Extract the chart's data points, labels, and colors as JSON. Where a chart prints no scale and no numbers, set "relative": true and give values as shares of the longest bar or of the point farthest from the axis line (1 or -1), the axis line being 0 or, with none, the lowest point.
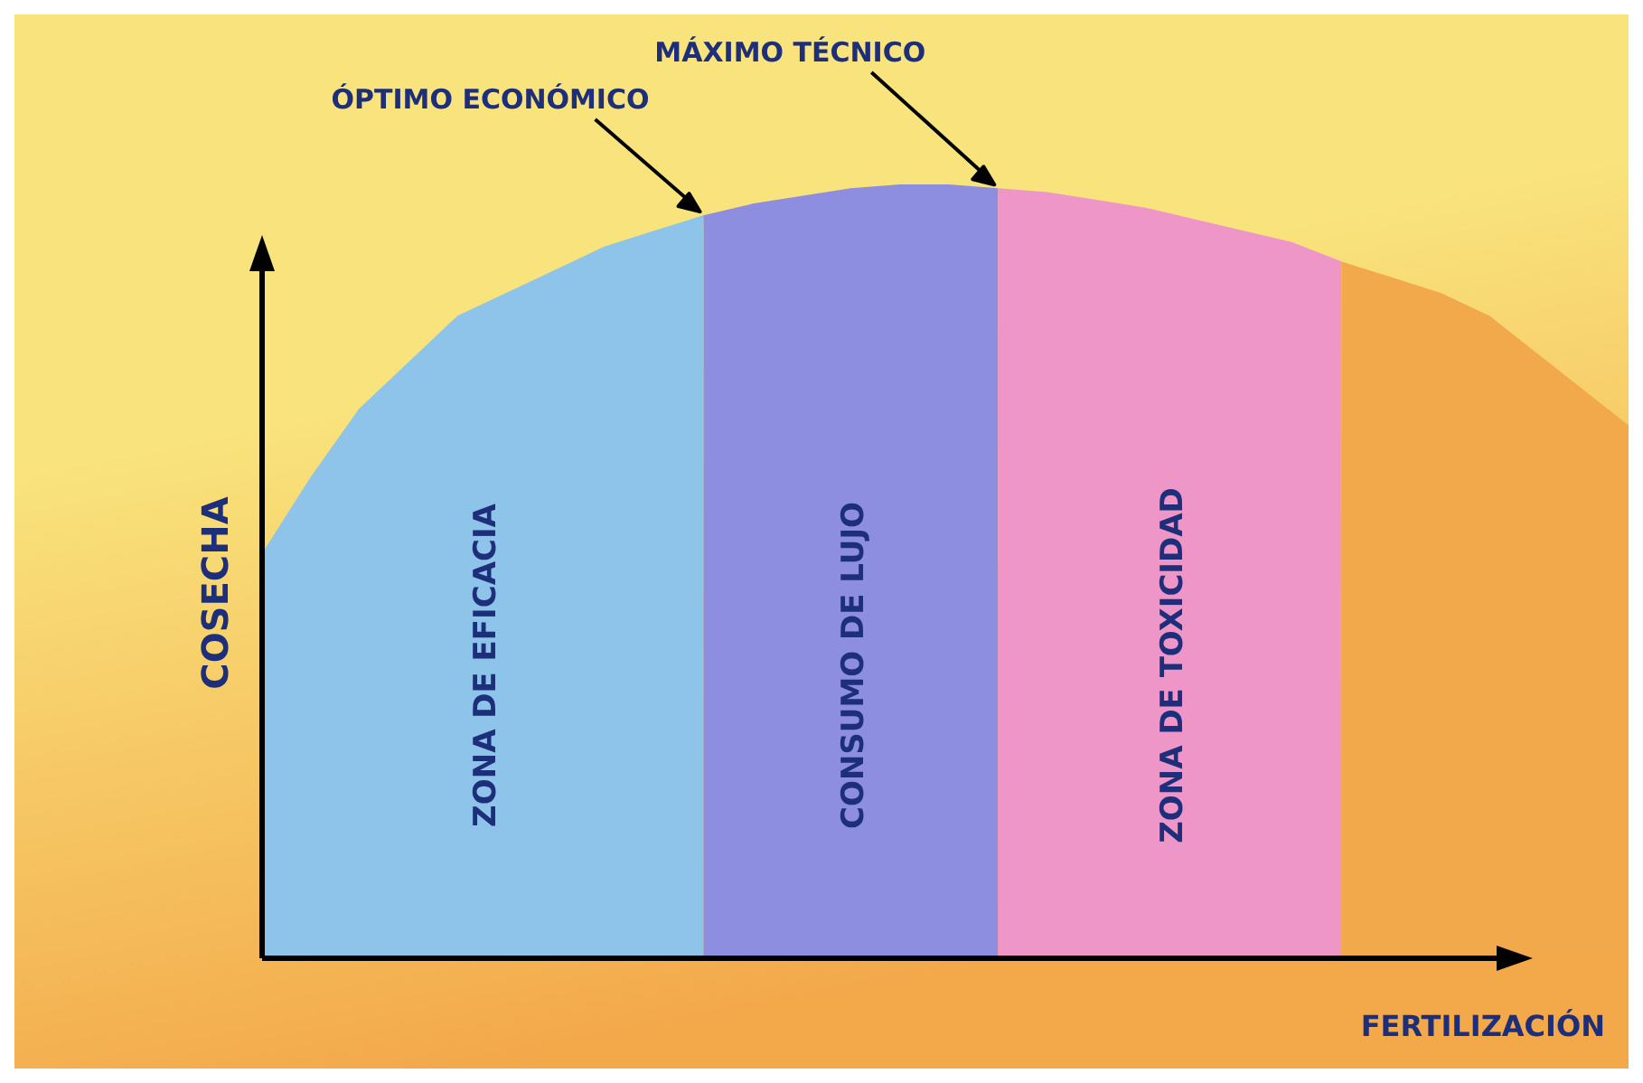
{
  "chart_data": {
    "type": "area",
    "relative": true,
    "xlabel": "FERTILIZACIÓN",
    "ylabel": "COSECHA",
    "categories": [
      null,
      null,
      null,
      null,
      null,
      null,
      null,
      null,
      null,
      null,
      null,
      null,
      null,
      null,
      null,
      null,
      null,
      null,
      null,
      null,
      null,
      null,
      null,
      null,
      null,
      null,
      null,
      null,
      null
    ],
    "series": [
      {
        "name": "ZONA DE EFICACIA",
        "color": "#8ec3ea",
        "values": [
          0.52,
          0.62,
          0.71,
          0.77,
          0.83,
          0.86,
          0.89,
          0.92,
          0.94,
          0.96,
          null,
          null,
          null,
          null,
          null,
          null,
          null,
          null,
          null,
          null,
          null,
          null,
          null,
          null,
          null,
          null,
          null,
          null,
          null
        ]
      },
      {
        "name": "CONSUMO DE LUJO",
        "color": "#8e8ee0",
        "values": [
          null,
          null,
          null,
          null,
          null,
          null,
          null,
          null,
          null,
          0.96,
          0.975,
          0.985,
          0.995,
          1,
          1,
          0.995,
          null,
          null,
          null,
          null,
          null,
          null,
          null,
          null,
          null,
          null,
          null,
          null,
          null
        ]
      },
      {
        "name": "ZONA DE TOXICIDAD",
        "color": "#ee96c8",
        "values": [
          null,
          null,
          null,
          null,
          null,
          null,
          null,
          null,
          null,
          null,
          null,
          null,
          null,
          null,
          null,
          0.995,
          0.99,
          0.98,
          0.97,
          0.955,
          0.94,
          0.925,
          0.9,
          null,
          null,
          null,
          null,
          null,
          null
        ]
      },
      {
        "color": "#f2a94c",
        "values": [
          null,
          null,
          null,
          null,
          null,
          null,
          null,
          null,
          null,
          null,
          null,
          null,
          null,
          null,
          null,
          null,
          null,
          null,
          null,
          null,
          null,
          null,
          0.9,
          0.88,
          0.86,
          0.83,
          0.78,
          0.73,
          0.68
        ]
      }
    ],
    "annotations": [
      "ÓPTIMO ECONÓMICO",
      "MÁXIMO TÉCNICO"
    ]
  }
}
